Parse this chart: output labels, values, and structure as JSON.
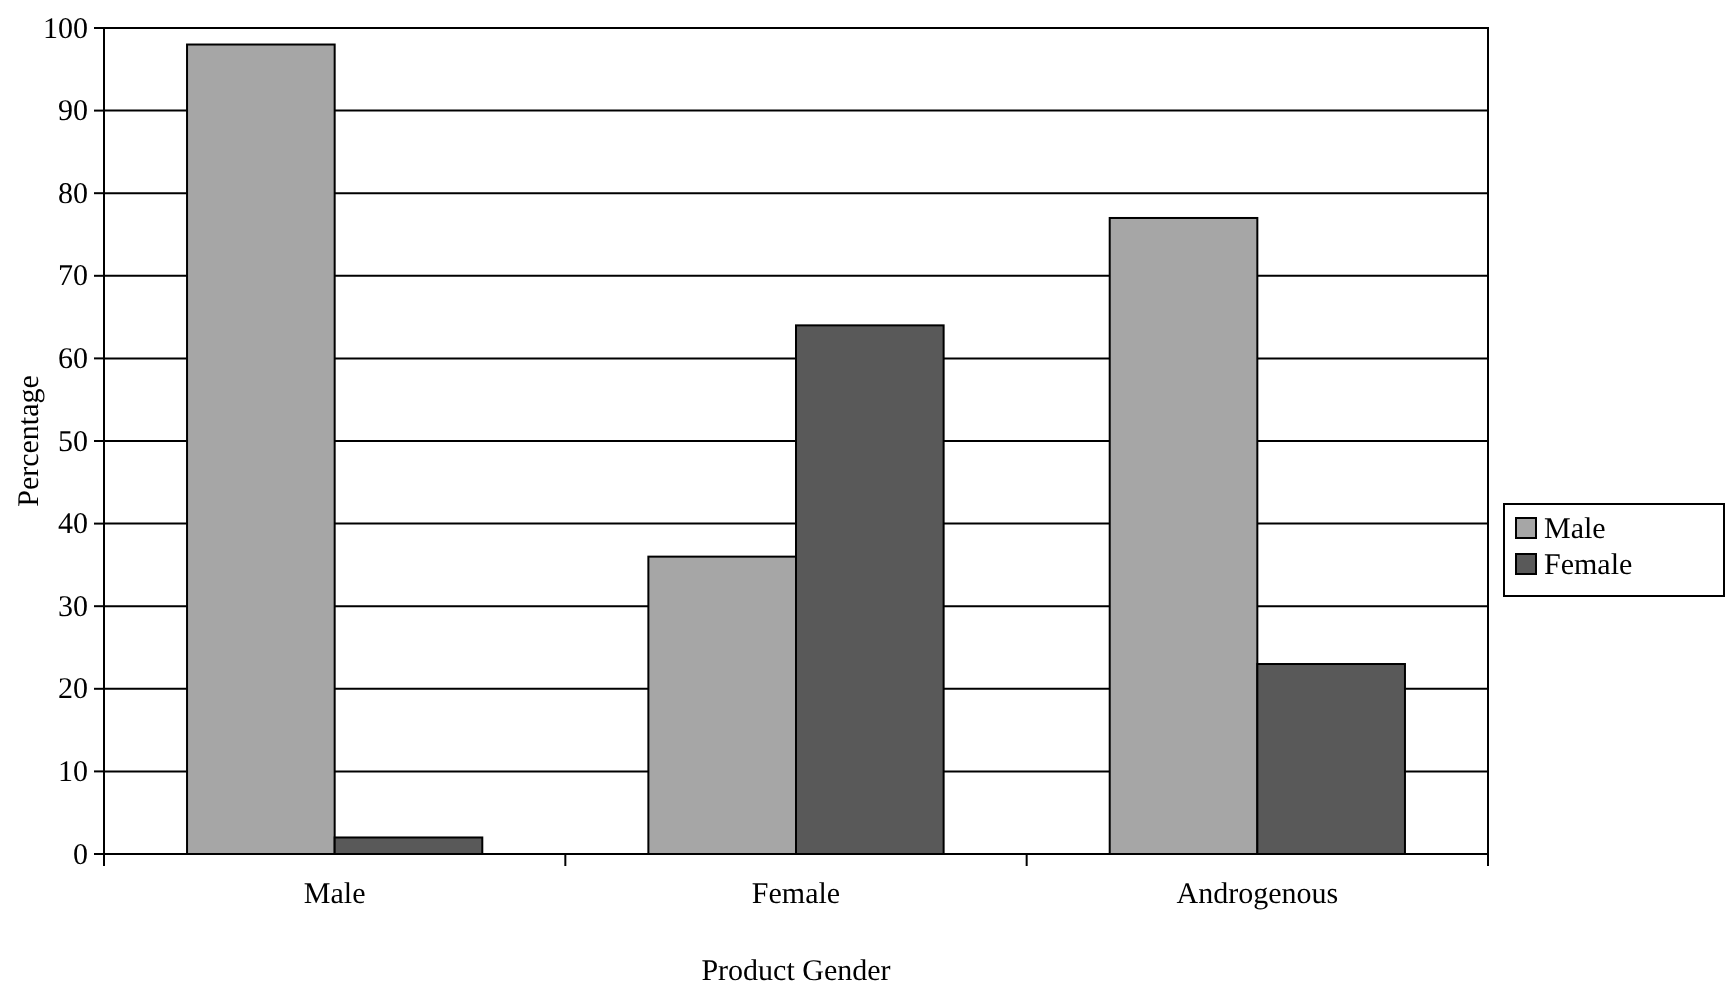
{
  "chart_data": {
    "type": "bar",
    "xlabel": "Product Gender",
    "ylabel": "Percentage",
    "categories": [
      "Male",
      "Female",
      "Androgenous"
    ],
    "series": [
      {
        "name": "Male",
        "color": "#a6a6a6",
        "values": [
          98,
          36,
          77
        ]
      },
      {
        "name": "Female",
        "color": "#595959",
        "values": [
          2,
          64,
          23
        ]
      }
    ],
    "ylim": [
      0,
      100
    ],
    "yticks": [
      0,
      10,
      20,
      30,
      40,
      50,
      60,
      70,
      80,
      90,
      100
    ],
    "grid": "y",
    "legend": "right"
  }
}
